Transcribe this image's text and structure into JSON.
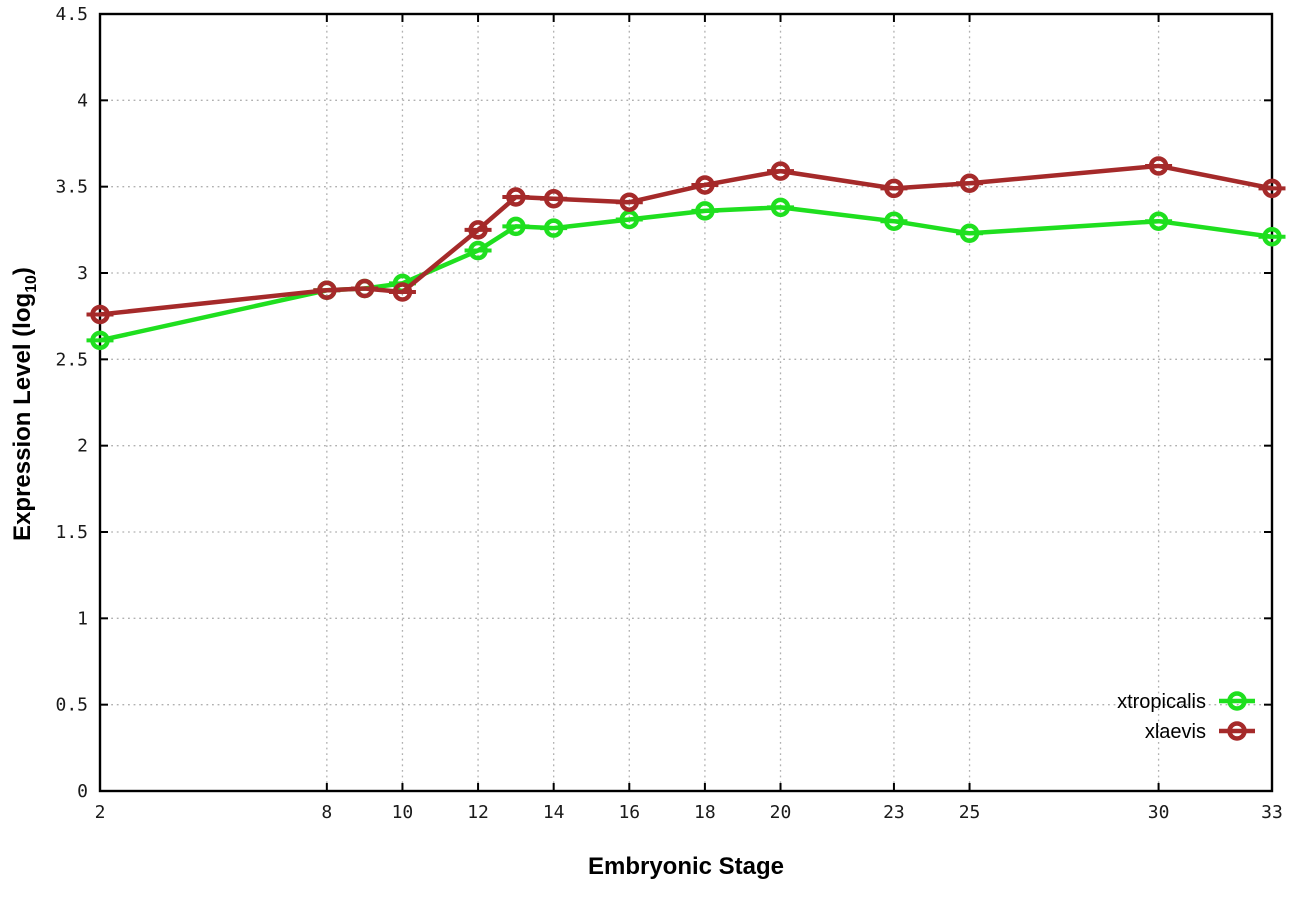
{
  "chart_data": {
    "type": "line",
    "title": "",
    "xlabel": "Embryonic Stage",
    "ylabel": "Expression Level (log10)",
    "ylabel_parts": {
      "pre": "Expression Level (log",
      "sub": "10",
      "post": ")"
    },
    "xlim": [
      2,
      33
    ],
    "ylim": [
      0,
      4.5
    ],
    "xticks": [
      2,
      8,
      10,
      12,
      14,
      16,
      18,
      20,
      23,
      25,
      30,
      33
    ],
    "yticks": [
      0,
      0.5,
      1,
      1.5,
      2,
      2.5,
      3,
      3.5,
      4,
      4.5
    ],
    "grid": true,
    "grid_style": "dotted",
    "legend_position": "bottom-right",
    "x": [
      2,
      8,
      9,
      10,
      12,
      13,
      14,
      16,
      18,
      20,
      23,
      25,
      30,
      33
    ],
    "series": [
      {
        "name": "xtropicalis",
        "color": "#1fdf1f",
        "marker": "open-circle-with-errorbar",
        "values": [
          2.61,
          2.9,
          2.91,
          2.94,
          3.13,
          3.27,
          3.26,
          3.31,
          3.36,
          3.38,
          3.3,
          3.23,
          3.3,
          3.21
        ]
      },
      {
        "name": "xlaevis",
        "color": "#a52a2a",
        "marker": "open-circle-with-errorbar",
        "values": [
          2.76,
          2.9,
          2.91,
          2.89,
          3.25,
          3.44,
          3.43,
          3.41,
          3.51,
          3.59,
          3.49,
          3.52,
          3.62,
          3.49
        ]
      }
    ],
    "colors": {
      "background": "#ffffff",
      "border": "#000000",
      "grid": "#b0b0b0",
      "tick_text": "#1a1a1a"
    }
  }
}
